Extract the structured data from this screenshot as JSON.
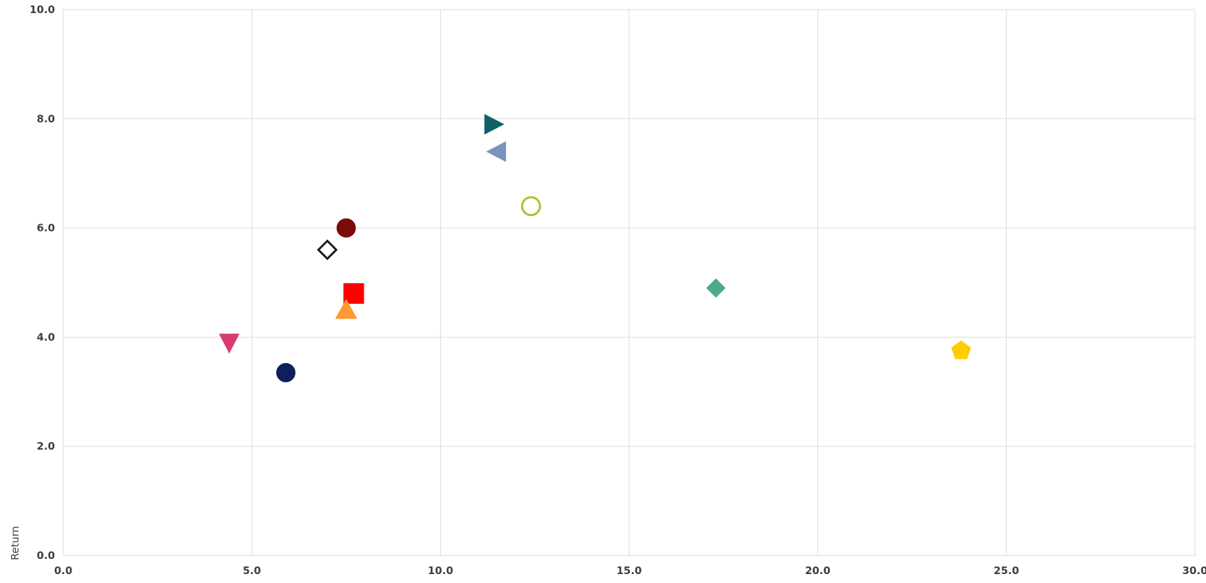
{
  "chart_data": {
    "type": "scatter",
    "xlabel": "",
    "ylabel": "Return",
    "xlim": [
      0,
      30
    ],
    "ylim": [
      0,
      10
    ],
    "x_ticks": [
      "0.0",
      "5.0",
      "10.0",
      "15.0",
      "20.0",
      "25.0",
      "30.0"
    ],
    "y_ticks": [
      "0.0",
      "2.0",
      "4.0",
      "6.0",
      "8.0",
      "10.0"
    ],
    "grid": true,
    "legend": "none",
    "points": [
      {
        "x": 11.4,
        "y": 7.9,
        "marker": "triangle-right",
        "color": "#0d6167",
        "filled": true
      },
      {
        "x": 11.5,
        "y": 7.4,
        "marker": "triangle-left",
        "color": "#7795be",
        "filled": true
      },
      {
        "x": 12.4,
        "y": 6.4,
        "marker": "circle",
        "color": "#a8c030",
        "filled": false
      },
      {
        "x": 7.5,
        "y": 6.0,
        "marker": "circle",
        "color": "#7d0a0a",
        "filled": true
      },
      {
        "x": 7.0,
        "y": 5.6,
        "marker": "diamond",
        "color": "#1a1a1a",
        "filled": false
      },
      {
        "x": 7.7,
        "y": 4.8,
        "marker": "square",
        "color": "#ff0000",
        "filled": true
      },
      {
        "x": 7.5,
        "y": 4.5,
        "marker": "triangle-up",
        "color": "#ff9933",
        "filled": true
      },
      {
        "x": 4.4,
        "y": 3.9,
        "marker": "triangle-down",
        "color": "#d63c72",
        "filled": true
      },
      {
        "x": 5.9,
        "y": 3.35,
        "marker": "circle",
        "color": "#0d1f5c",
        "filled": true
      },
      {
        "x": 17.3,
        "y": 4.9,
        "marker": "diamond",
        "color": "#4aaa8a",
        "filled": true
      },
      {
        "x": 23.8,
        "y": 3.75,
        "marker": "pentagon",
        "color": "#ffcc00",
        "filled": true
      }
    ]
  }
}
